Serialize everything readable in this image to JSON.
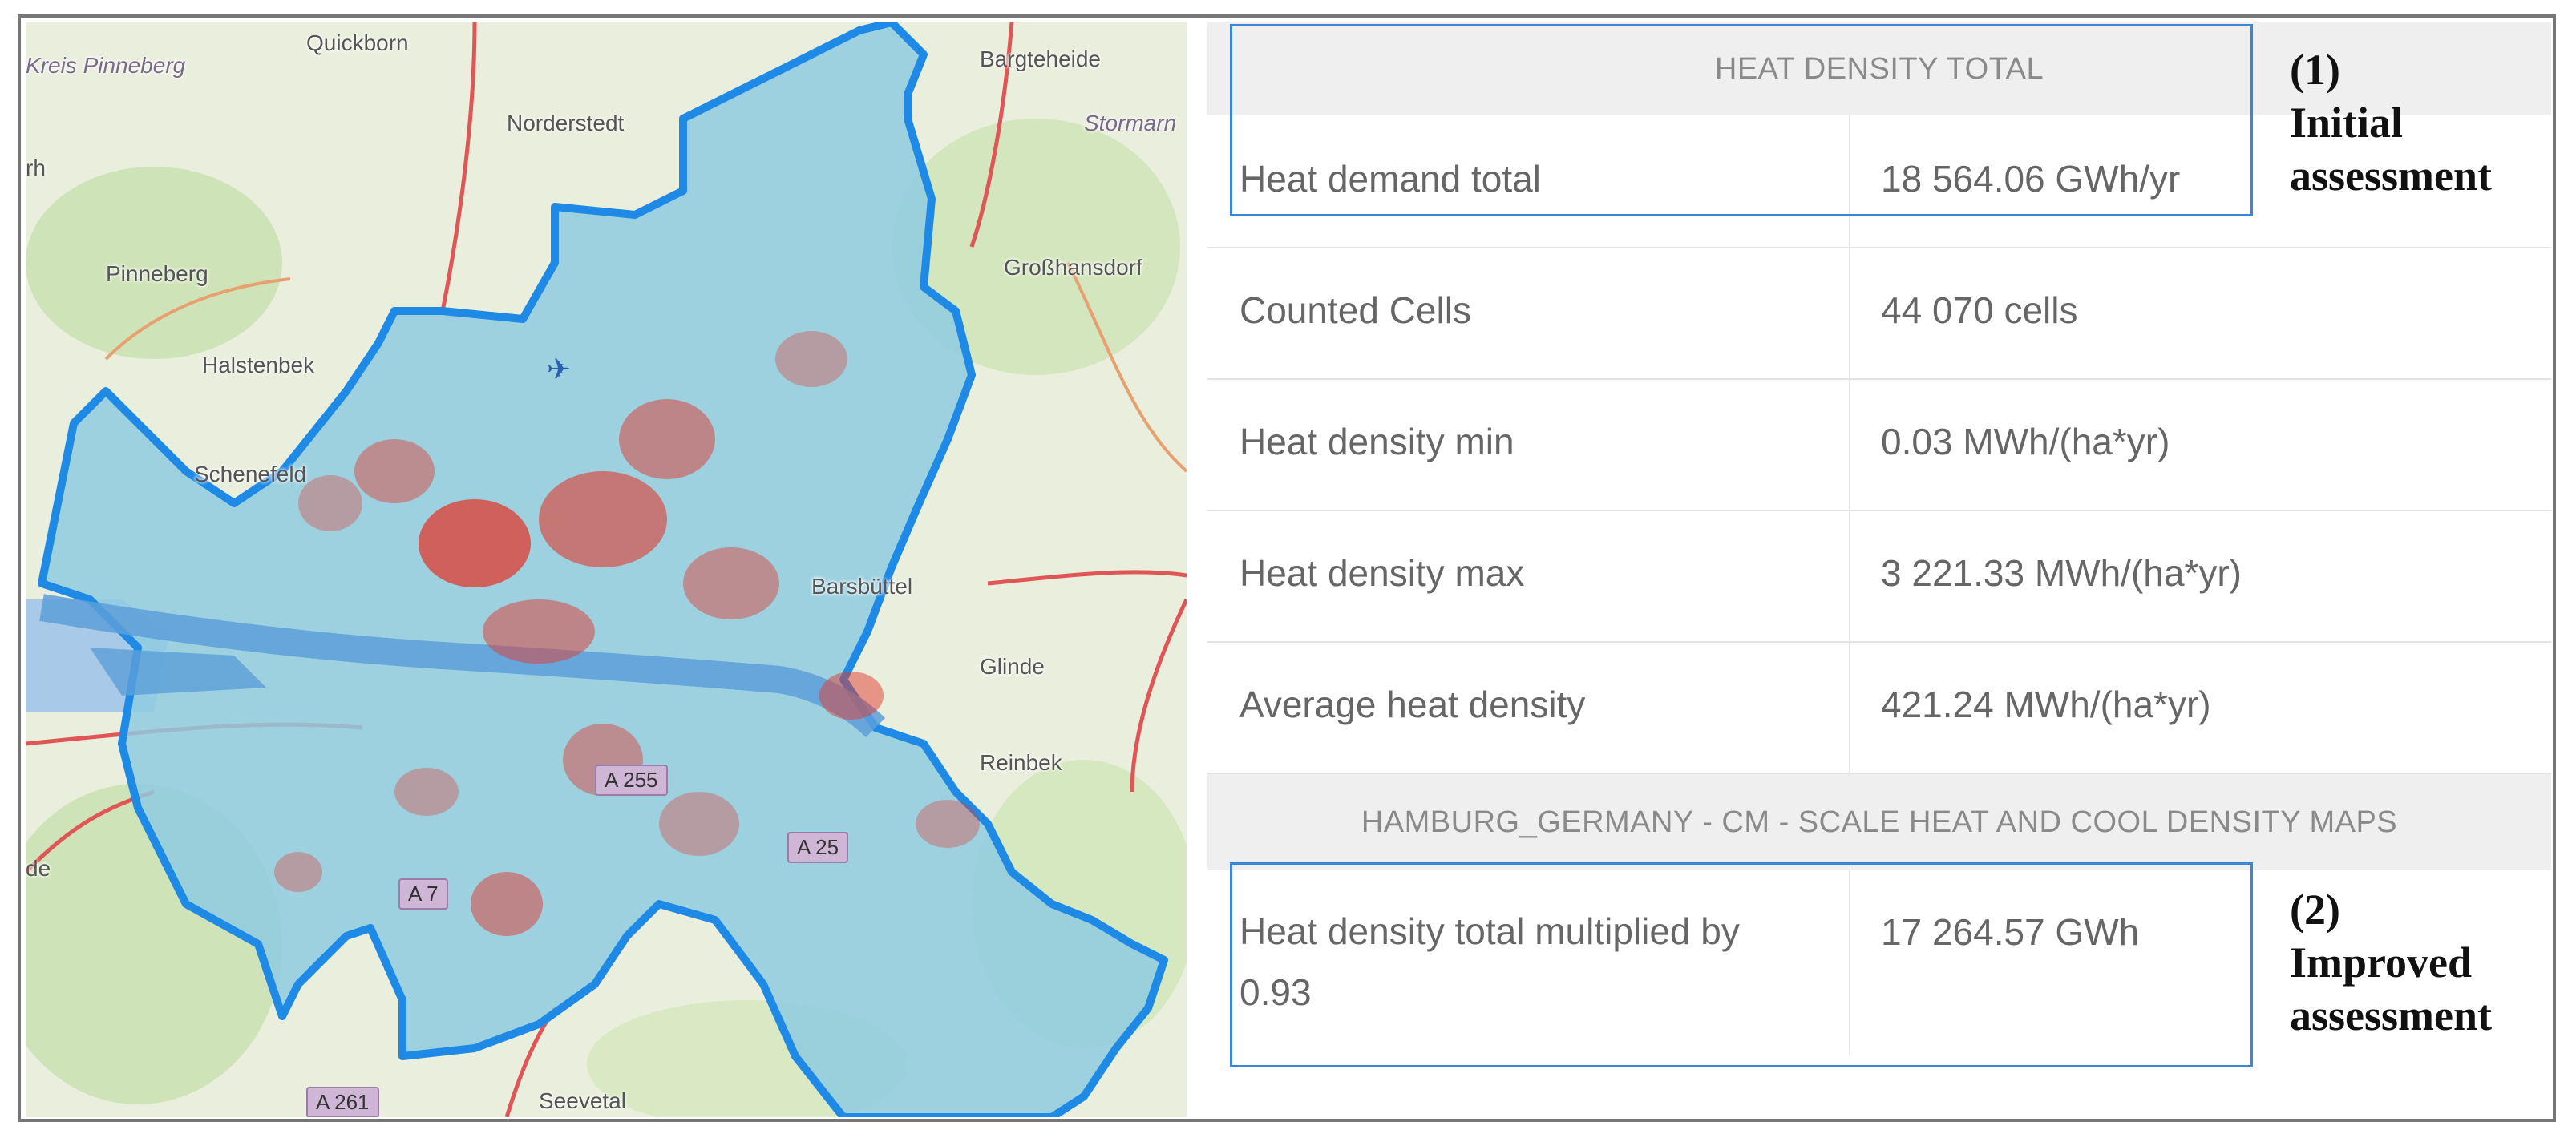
{
  "map": {
    "place_labels": [
      "Kreis Pinneberg",
      "Quickborn",
      "Norderstedt",
      "Bargteheide",
      "Stormarn",
      "Pinneberg",
      "Großhansdorf",
      "Halstenbek",
      "Schenefeld",
      "Barsbüttel",
      "Glinde",
      "Reinbek",
      "Seevetal",
      "rh",
      "de"
    ],
    "road_labels": [
      "A 255",
      "A 7",
      "A 261",
      "A 25"
    ],
    "colors": {
      "boundary": "#1e8ae6",
      "fill": "#7fc6e4",
      "hotspot": "#e03a2f",
      "water": "#6fa8d8"
    }
  },
  "table": {
    "section1_header": "HEAT DENSITY TOTAL",
    "rows": [
      {
        "label": "Heat demand total",
        "value": "18 564.06 GWh/yr"
      },
      {
        "label": "Counted Cells",
        "value": "44 070 cells"
      },
      {
        "label": "Heat density min",
        "value": "0.03 MWh/(ha*yr)"
      },
      {
        "label": "Heat density max",
        "value": "3 221.33 MWh/(ha*yr)"
      },
      {
        "label": "Average heat density",
        "value": "421.24 MWh/(ha*yr)"
      }
    ],
    "section2_header": "HAMBURG_GERMANY - CM - SCALE HEAT AND COOL DENSITY MAPS",
    "row2": {
      "label_line1": "Heat density total multiplied by",
      "label_line2": "0.93",
      "value": "17 264.57 GWh"
    }
  },
  "annotations": {
    "initial": {
      "num": "(1)",
      "line1": "Initial",
      "line2": "assessment"
    },
    "improved": {
      "num": "(2)",
      "line1": "Improved",
      "line2": "assessment"
    }
  }
}
